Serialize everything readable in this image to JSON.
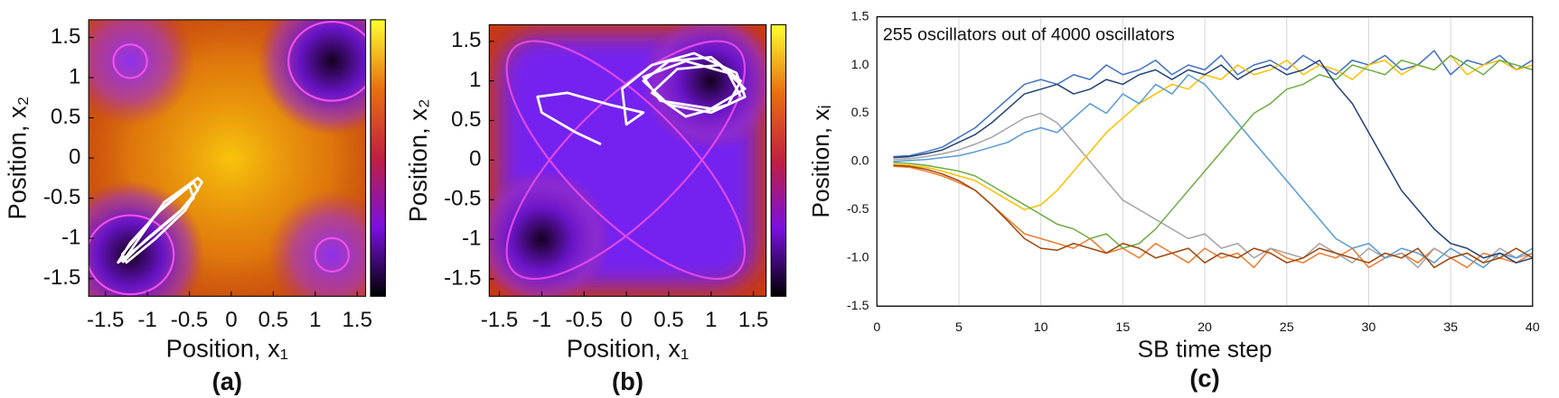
{
  "chart_data": [
    {
      "type": "line",
      "label": "(a)",
      "xlabel": "Position, x₁",
      "ylabel": "Position, x₂",
      "xlim": [
        -1.7,
        1.6
      ],
      "ylim": [
        -1.72,
        1.72
      ],
      "xticks": [
        -1.5,
        -1,
        -0.5,
        0,
        0.5,
        1,
        1.5
      ],
      "yticks": [
        -1.5,
        -1,
        -0.5,
        0,
        0.5,
        1,
        1.5
      ],
      "series": [
        {
          "color": "#ffffff",
          "x": [
            -1.3,
            -1.0,
            -0.6,
            -0.4,
            -0.45,
            -0.8,
            -1.2,
            -1.35,
            -1.1,
            -0.7,
            -0.45,
            -0.5,
            -0.9,
            -1.3,
            -1.25,
            -0.9,
            -0.55,
            -0.35,
            -0.4,
            -0.8,
            -1.3
          ],
          "y": [
            -1.3,
            -1.0,
            -0.65,
            -0.4,
            -0.3,
            -0.6,
            -1.05,
            -1.3,
            -1.1,
            -0.75,
            -0.5,
            -0.35,
            -0.7,
            -1.2,
            -1.3,
            -1.0,
            -0.65,
            -0.3,
            -0.25,
            -0.55,
            -1.3
          ]
        }
      ]
    },
    {
      "type": "line",
      "label": "(b)",
      "xlabel": "Position, x₁",
      "ylabel": "Position, x₂",
      "xlim": [
        -1.62,
        1.65
      ],
      "ylim": [
        -1.72,
        1.71
      ],
      "xticks": [
        -1.5,
        -1,
        -0.5,
        0,
        0.5,
        1,
        1.5
      ],
      "yticks": [
        -1.5,
        -1,
        -0.5,
        0,
        0.5,
        1,
        1.5
      ],
      "series": [
        {
          "color": "#ffffff",
          "x": [
            -0.3,
            -0.6,
            -1.0,
            -1.05,
            -0.7,
            -0.2,
            0.2,
            0.0,
            -0.05,
            0.3,
            0.8,
            1.3,
            1.4,
            1.0,
            0.5,
            0.2,
            0.5,
            1.0,
            1.35,
            1.2,
            0.7,
            0.3,
            0.6,
            1.1,
            1.4,
            1.0,
            0.4,
            0.2,
            0.7,
            1.2,
            1.35
          ],
          "y": [
            0.2,
            0.35,
            0.6,
            0.8,
            0.85,
            0.7,
            0.6,
            0.45,
            0.9,
            1.2,
            1.35,
            1.1,
            0.8,
            0.6,
            0.7,
            1.0,
            1.25,
            1.3,
            1.0,
            0.7,
            0.55,
            0.85,
            1.15,
            1.2,
            0.9,
            0.65,
            0.75,
            1.05,
            1.25,
            1.1,
            0.8
          ]
        }
      ]
    },
    {
      "type": "line",
      "label": "(c)",
      "annotation": "255 oscillators out of 4000 oscillators",
      "xlabel": "SB time step",
      "ylabel": "Position, xᵢ",
      "grid": "x",
      "xlim": [
        0,
        40
      ],
      "ylim": [
        -1.5,
        1.5
      ],
      "xticks": [
        0,
        5,
        10,
        15,
        20,
        25,
        30,
        35,
        40
      ],
      "yticks": [
        1.5,
        {
          "value": 1.0,
          "label": "1.0"
        },
        0.5,
        {
          "value": 0.0,
          "label": "0.0"
        },
        -0.5,
        {
          "value": -1.0,
          "label": "-1.0"
        },
        -1.5
      ],
      "x": [
        1,
        2,
        3,
        4,
        5,
        6,
        7,
        8,
        9,
        10,
        11,
        12,
        13,
        14,
        15,
        16,
        17,
        18,
        19,
        20,
        21,
        22,
        23,
        24,
        25,
        26,
        27,
        28,
        29,
        30,
        31,
        32,
        33,
        34,
        35,
        36,
        37,
        38,
        39,
        40
      ],
      "series": [
        {
          "color": "#4472c4",
          "values": [
            0.05,
            0.06,
            0.1,
            0.15,
            0.25,
            0.35,
            0.5,
            0.65,
            0.8,
            0.85,
            0.8,
            0.9,
            0.85,
            1.0,
            0.9,
            0.95,
            1.05,
            0.9,
            1.0,
            0.95,
            1.1,
            0.9,
            1.0,
            1.05,
            0.95,
            1.1,
            1.0,
            0.9,
            1.05,
            1.0,
            1.1,
            0.95,
            1.0,
            1.15,
            0.9,
            1.05,
            1.0,
            1.1,
            0.95,
            1.05
          ]
        },
        {
          "color": "#ed7d31",
          "values": [
            -0.05,
            -0.06,
            -0.1,
            -0.15,
            -0.22,
            -0.3,
            -0.45,
            -0.6,
            -0.75,
            -0.8,
            -0.85,
            -0.9,
            -0.8,
            -0.95,
            -0.9,
            -1.0,
            -0.85,
            -0.95,
            -1.05,
            -0.9,
            -1.0,
            -0.95,
            -1.1,
            -0.9,
            -1.0,
            -1.05,
            -0.95,
            -1.0,
            -0.9,
            -1.1,
            -1.0,
            -0.95,
            -1.05,
            -0.9,
            -1.0,
            -1.1,
            -0.95,
            -1.0,
            -1.05,
            -0.95
          ]
        },
        {
          "color": "#a5a5a5",
          "values": [
            0.02,
            0.03,
            0.05,
            0.08,
            0.12,
            0.18,
            0.25,
            0.35,
            0.45,
            0.5,
            0.4,
            0.2,
            0.0,
            -0.2,
            -0.4,
            -0.5,
            -0.6,
            -0.7,
            -0.8,
            -0.75,
            -0.9,
            -0.85,
            -1.0,
            -0.9,
            -0.95,
            -1.0,
            -0.85,
            -0.95,
            -1.05,
            -0.9,
            -1.0,
            -0.95,
            -1.1,
            -0.9,
            -1.0,
            -0.95,
            -1.05,
            -0.9,
            -1.0,
            -0.95
          ]
        },
        {
          "color": "#ffc000",
          "values": [
            -0.03,
            -0.04,
            -0.06,
            -0.1,
            -0.15,
            -0.2,
            -0.3,
            -0.4,
            -0.5,
            -0.45,
            -0.3,
            -0.1,
            0.1,
            0.3,
            0.45,
            0.6,
            0.7,
            0.8,
            0.75,
            0.9,
            0.85,
            1.0,
            0.9,
            0.95,
            1.05,
            0.9,
            1.0,
            0.95,
            0.85,
            1.0,
            1.05,
            0.9,
            1.0,
            0.95,
            1.1,
            0.9,
            1.0,
            1.05,
            0.95,
            1.0
          ]
        },
        {
          "color": "#5b9bd5",
          "values": [
            0.0,
            0.01,
            0.02,
            0.04,
            0.06,
            0.1,
            0.15,
            0.2,
            0.3,
            0.35,
            0.3,
            0.45,
            0.6,
            0.5,
            0.7,
            0.6,
            0.8,
            0.7,
            0.9,
            0.8,
            0.6,
            0.4,
            0.2,
            0.0,
            -0.2,
            -0.4,
            -0.6,
            -0.8,
            -0.9,
            -0.85,
            -1.0,
            -0.9,
            -0.95,
            -1.05,
            -0.9,
            -1.0,
            -1.1,
            -0.95,
            -1.0,
            -0.9
          ]
        },
        {
          "color": "#70ad47",
          "values": [
            -0.01,
            -0.02,
            -0.04,
            -0.07,
            -0.1,
            -0.15,
            -0.25,
            -0.35,
            -0.45,
            -0.55,
            -0.65,
            -0.7,
            -0.8,
            -0.75,
            -0.9,
            -0.85,
            -0.7,
            -0.5,
            -0.3,
            -0.1,
            0.1,
            0.3,
            0.5,
            0.6,
            0.75,
            0.8,
            0.9,
            0.85,
            1.0,
            0.95,
            0.9,
            1.05,
            1.0,
            0.95,
            1.1,
            1.0,
            0.9,
            1.05,
            1.0,
            0.95
          ]
        },
        {
          "color": "#264478",
          "values": [
            0.04,
            0.05,
            0.08,
            0.12,
            0.2,
            0.28,
            0.4,
            0.55,
            0.7,
            0.75,
            0.8,
            0.7,
            0.75,
            0.85,
            0.8,
            0.9,
            0.95,
            0.85,
            0.95,
            0.9,
            1.0,
            0.85,
            0.95,
            1.0,
            0.9,
            0.95,
            1.05,
            0.8,
            0.6,
            0.3,
            0.0,
            -0.3,
            -0.5,
            -0.7,
            -0.85,
            -0.9,
            -1.0,
            -0.95,
            -1.05,
            -1.0
          ]
        },
        {
          "color": "#9e480e",
          "values": [
            -0.04,
            -0.05,
            -0.08,
            -0.13,
            -0.2,
            -0.3,
            -0.45,
            -0.62,
            -0.8,
            -0.9,
            -0.92,
            -0.85,
            -0.9,
            -0.95,
            -0.85,
            -0.9,
            -1.0,
            -0.95,
            -0.9,
            -1.05,
            -0.95,
            -1.0,
            -0.9,
            -0.95,
            -1.05,
            -1.0,
            -0.9,
            -0.95,
            -1.0,
            -1.05,
            -0.95,
            -1.0,
            -0.9,
            -1.1,
            -1.0,
            -0.95,
            -1.05,
            -1.0,
            -0.9,
            -1.0
          ]
        }
      ]
    }
  ]
}
